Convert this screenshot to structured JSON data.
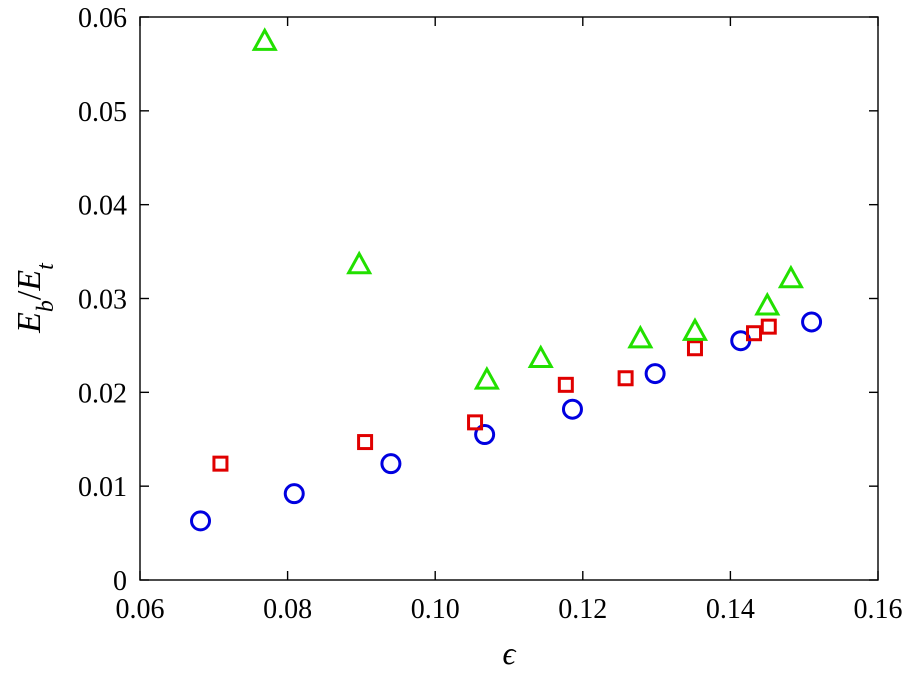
{
  "chart_data": {
    "type": "scatter",
    "title": "",
    "xlabel": "ϵ",
    "ylabel": {
      "main": "E",
      "sub1": "b",
      "sep": "/",
      "main2": "E",
      "sub2": "t"
    },
    "xlim": [
      0.06,
      0.16
    ],
    "ylim": [
      0,
      0.06
    ],
    "x_ticks": [
      0.06,
      0.08,
      0.1,
      0.12,
      0.14,
      0.16
    ],
    "x_tick_labels": [
      "0.06",
      "0.08",
      "0.10",
      "0.12",
      "0.14",
      "0.16"
    ],
    "y_ticks": [
      0,
      0.01,
      0.02,
      0.03,
      0.04,
      0.05,
      0.06
    ],
    "y_tick_labels": [
      "0",
      "0.01",
      "0.02",
      "0.03",
      "0.04",
      "0.05",
      "0.06"
    ],
    "grid": false,
    "legend": "none",
    "series": [
      {
        "marker": "circle",
        "color": "#0000e0",
        "points": [
          [
            0.0682,
            0.0063
          ],
          [
            0.0809,
            0.0092
          ],
          [
            0.094,
            0.0124
          ],
          [
            0.1067,
            0.0155
          ],
          [
            0.1186,
            0.0182
          ],
          [
            0.1298,
            0.022
          ],
          [
            0.1414,
            0.0255
          ],
          [
            0.151,
            0.0275
          ]
        ]
      },
      {
        "marker": "square",
        "color": "#e00000",
        "points": [
          [
            0.0709,
            0.0124
          ],
          [
            0.0905,
            0.0147
          ],
          [
            0.1054,
            0.0168
          ],
          [
            0.1177,
            0.0208
          ],
          [
            0.1258,
            0.0215
          ],
          [
            0.1352,
            0.0247
          ],
          [
            0.1432,
            0.0263
          ],
          [
            0.1452,
            0.027
          ]
        ]
      },
      {
        "marker": "triangle",
        "color": "#22e000",
        "points": [
          [
            0.0769,
            0.0574
          ],
          [
            0.0897,
            0.0336
          ],
          [
            0.107,
            0.0213
          ],
          [
            0.1143,
            0.0236
          ],
          [
            0.1278,
            0.0257
          ],
          [
            0.1352,
            0.0265
          ],
          [
            0.145,
            0.0292
          ],
          [
            0.1482,
            0.0321
          ]
        ]
      }
    ]
  }
}
